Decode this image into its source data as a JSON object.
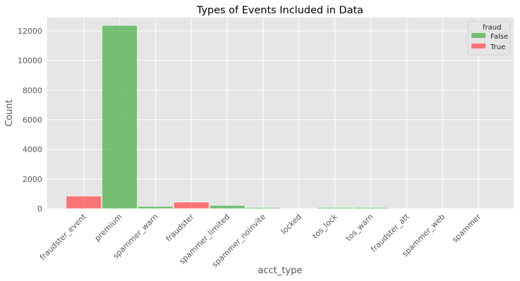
{
  "chart_data": {
    "type": "bar",
    "title": "Types of Events Included in Data",
    "xlabel": "acct_type",
    "ylabel": "Count",
    "ylim": [
      0,
      12900
    ],
    "yticks": [
      0,
      2000,
      4000,
      6000,
      8000,
      10000,
      12000
    ],
    "grid": true,
    "legend": {
      "title": "fraud",
      "placement": "top-right",
      "entries": [
        {
          "name": "False",
          "color": "#4daf4a"
        },
        {
          "name": "True",
          "color": "#ff4d4d"
        }
      ]
    },
    "categories": [
      "fraudster_event",
      "premium",
      "spammer_warn",
      "fraudster",
      "spammer_limited",
      "spammer_noinvite",
      "locked",
      "tos_lock",
      "tos_warn",
      "fraudster_att",
      "spammer_web",
      "spammer"
    ],
    "series": [
      {
        "name": "False",
        "color": "#4daf4a",
        "values": [
          0,
          12370,
          150,
          0,
          220,
          80,
          0,
          80,
          80,
          0,
          0,
          0
        ]
      },
      {
        "name": "True",
        "color": "#ff4d4d",
        "values": [
          850,
          0,
          0,
          440,
          0,
          0,
          0,
          0,
          0,
          0,
          0,
          0
        ]
      }
    ]
  }
}
